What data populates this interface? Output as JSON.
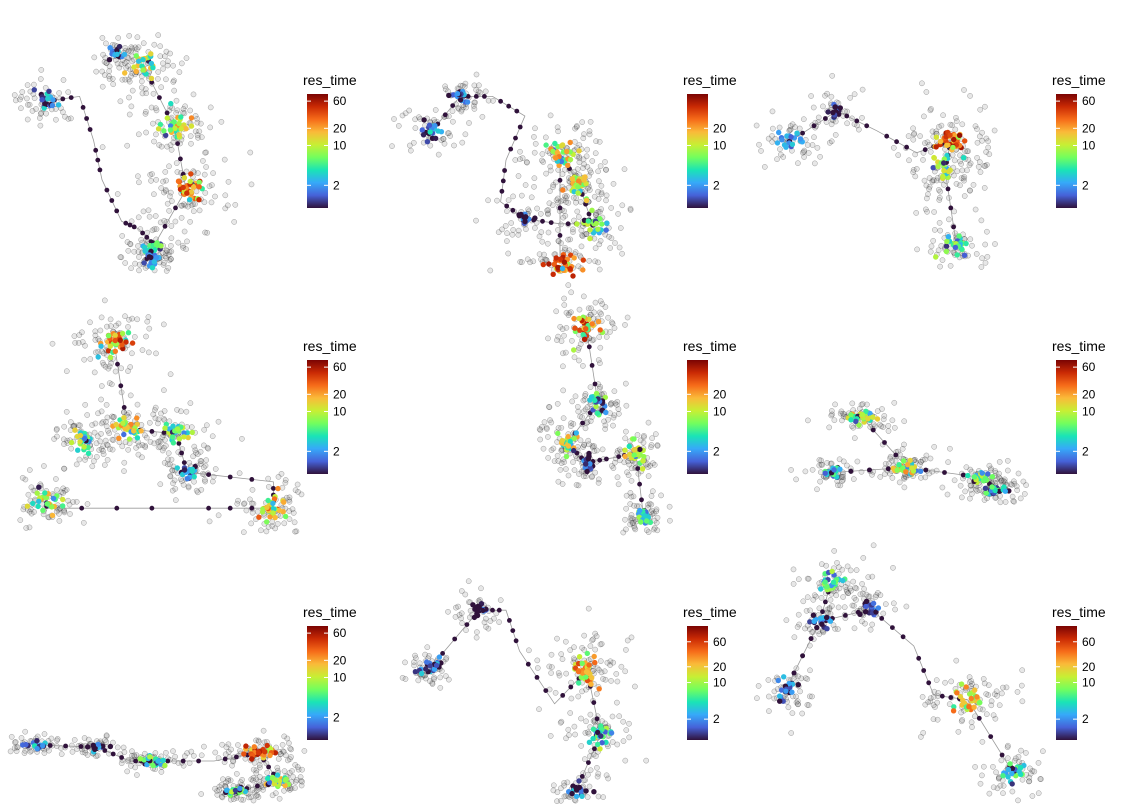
{
  "figure": {
    "legend_title": "res_time",
    "colormap": [
      "#30123b",
      "#4662d8",
      "#36a9f9",
      "#1ae4b6",
      "#72fe5e",
      "#c8ef34",
      "#faba39",
      "#f66b19",
      "#ca2a04",
      "#7a0403"
    ],
    "raw_point_color": "#000000",
    "path_color": "#9a9a9a"
  },
  "chart_data": [
    {
      "type": "scatter",
      "panel": "row1-col1",
      "legend": {
        "title": "res_time",
        "scale": "log",
        "ticks": [
          2,
          10,
          20,
          60
        ],
        "range": [
          0.8,
          80
        ]
      },
      "clusters": [
        [
          0.1,
          0.34,
          4
        ],
        [
          0.45,
          0.2,
          20
        ],
        [
          0.56,
          0.45,
          25
        ],
        [
          0.6,
          0.7,
          60
        ],
        [
          0.49,
          0.93,
          8
        ],
        [
          0.48,
          0.98,
          4
        ],
        [
          0.35,
          0.15,
          3
        ]
      ],
      "path": [
        [
          0.1,
          0.34
        ],
        [
          0.22,
          0.32
        ],
        [
          0.27,
          0.5
        ],
        [
          0.3,
          0.66
        ],
        [
          0.37,
          0.83
        ],
        [
          0.43,
          0.86
        ],
        [
          0.49,
          0.93
        ],
        [
          0.45,
          1.0
        ],
        [
          0.6,
          0.7
        ],
        [
          0.56,
          0.45
        ],
        [
          0.45,
          0.2
        ]
      ]
    },
    {
      "type": "scatter",
      "panel": "row1-col2",
      "legend": {
        "title": "res_time",
        "scale": "log",
        "ticks": [
          2,
          10,
          20
        ],
        "range": [
          0.8,
          80
        ]
      },
      "clusters": [
        [
          0.12,
          0.47,
          4
        ],
        [
          0.23,
          0.32,
          3
        ],
        [
          0.6,
          0.55,
          30
        ],
        [
          0.67,
          0.68,
          25
        ],
        [
          0.72,
          0.84,
          12
        ],
        [
          0.6,
          1.0,
          70
        ],
        [
          0.47,
          0.82,
          2
        ]
      ],
      "path": [
        [
          0.12,
          0.47
        ],
        [
          0.23,
          0.32
        ],
        [
          0.35,
          0.32
        ],
        [
          0.47,
          0.4
        ],
        [
          0.4,
          0.58
        ],
        [
          0.38,
          0.75
        ],
        [
          0.47,
          0.82
        ],
        [
          0.6,
          0.84
        ],
        [
          0.72,
          0.84
        ],
        [
          0.67,
          0.68
        ],
        [
          0.6,
          0.55
        ],
        [
          0.6,
          1.0
        ]
      ]
    },
    {
      "type": "scatter",
      "panel": "row1-col3",
      "legend": {
        "title": "res_time",
        "scale": "log",
        "ticks": [
          2,
          10,
          20,
          60
        ],
        "range": [
          0.8,
          80
        ]
      },
      "clusters": [
        [
          0.12,
          0.5,
          4
        ],
        [
          0.68,
          0.5,
          70
        ],
        [
          0.66,
          0.62,
          15
        ],
        [
          0.7,
          0.93,
          10
        ],
        [
          0.28,
          0.38,
          2
        ]
      ],
      "path": [
        [
          0.12,
          0.5
        ],
        [
          0.28,
          0.38
        ],
        [
          0.42,
          0.46
        ],
        [
          0.56,
          0.55
        ],
        [
          0.68,
          0.5
        ],
        [
          0.66,
          0.62
        ],
        [
          0.7,
          0.93
        ]
      ]
    },
    {
      "type": "scatter",
      "panel": "row2-col1",
      "legend": {
        "title": "res_time",
        "scale": "log",
        "ticks": [
          2,
          10,
          20,
          60
        ],
        "range": [
          0.8,
          80
        ]
      },
      "clusters": [
        [
          0.33,
          0.24,
          60
        ],
        [
          0.38,
          0.6,
          25
        ],
        [
          0.22,
          0.65,
          15
        ],
        [
          0.56,
          0.62,
          15
        ],
        [
          0.92,
          0.93,
          40
        ],
        [
          0.08,
          0.9,
          20
        ],
        [
          0.6,
          0.78,
          4
        ]
      ],
      "path": [
        [
          0.33,
          0.24
        ],
        [
          0.38,
          0.6
        ],
        [
          0.56,
          0.62
        ],
        [
          0.6,
          0.78
        ],
        [
          0.92,
          0.82
        ],
        [
          0.92,
          0.93
        ],
        [
          0.6,
          0.93
        ],
        [
          0.08,
          0.93
        ],
        [
          0.08,
          0.9
        ]
      ]
    },
    {
      "type": "scatter",
      "panel": "row2-col2",
      "legend": {
        "title": "res_time",
        "scale": "log",
        "ticks": [
          2,
          10,
          20
        ],
        "range": [
          0.8,
          80
        ]
      },
      "clusters": [
        [
          0.56,
          0.18,
          60
        ],
        [
          0.62,
          0.49,
          10
        ],
        [
          0.46,
          0.66,
          20
        ],
        [
          0.82,
          0.7,
          20
        ],
        [
          0.86,
          0.96,
          8
        ],
        [
          0.56,
          0.74,
          2
        ]
      ],
      "path": [
        [
          0.56,
          0.18
        ],
        [
          0.62,
          0.49
        ],
        [
          0.46,
          0.66
        ],
        [
          0.56,
          0.74
        ],
        [
          0.7,
          0.72
        ],
        [
          0.82,
          0.7
        ],
        [
          0.86,
          0.96
        ]
      ]
    },
    {
      "type": "scatter",
      "panel": "row3-col3",
      "legend": {
        "title": "res_time",
        "scale": "log",
        "ticks": [
          2,
          10,
          20,
          60
        ],
        "range": [
          0.8,
          80
        ]
      },
      "clusters": [
        [
          0.3,
          0.1,
          20
        ],
        [
          0.48,
          0.5,
          25
        ],
        [
          0.18,
          0.54,
          6
        ],
        [
          0.78,
          0.58,
          12
        ],
        [
          0.84,
          0.68,
          6
        ]
      ],
      "path": [
        [
          0.3,
          0.1
        ],
        [
          0.48,
          0.5
        ],
        [
          0.18,
          0.54
        ],
        [
          0.48,
          0.5
        ],
        [
          0.78,
          0.58
        ],
        [
          0.84,
          0.68
        ]
      ]
    },
    {
      "type": "scatter",
      "panel": "row3-col1",
      "legend": {
        "title": "res_time",
        "scale": "log",
        "ticks": [
          2,
          10,
          20,
          60
        ],
        "range": [
          0.8,
          80
        ]
      },
      "clusters": [
        [
          0.06,
          0.5,
          4
        ],
        [
          0.28,
          0.52,
          3
        ],
        [
          0.48,
          0.66,
          12
        ],
        [
          0.86,
          0.58,
          60
        ],
        [
          0.93,
          0.86,
          20
        ],
        [
          0.78,
          0.96,
          10
        ]
      ],
      "path": [
        [
          0.06,
          0.5
        ],
        [
          0.28,
          0.52
        ],
        [
          0.4,
          0.66
        ],
        [
          0.48,
          0.66
        ],
        [
          0.7,
          0.66
        ],
        [
          0.86,
          0.58
        ],
        [
          0.93,
          0.86
        ],
        [
          0.78,
          0.96
        ]
      ]
    },
    {
      "type": "scatter",
      "panel": "row3-col2",
      "legend": {
        "title": "res_time",
        "scale": "log",
        "ticks": [
          2,
          10,
          20,
          60
        ],
        "range": [
          0.8,
          120
        ]
      },
      "clusters": [
        [
          0.12,
          0.47,
          4
        ],
        [
          0.7,
          0.48,
          60
        ],
        [
          0.75,
          0.75,
          15
        ],
        [
          0.66,
          0.98,
          4
        ],
        [
          0.3,
          0.23,
          2
        ]
      ],
      "path": [
        [
          0.12,
          0.47
        ],
        [
          0.3,
          0.23
        ],
        [
          0.4,
          0.23
        ],
        [
          0.45,
          0.4
        ],
        [
          0.58,
          0.62
        ],
        [
          0.7,
          0.48
        ],
        [
          0.75,
          0.75
        ],
        [
          0.66,
          0.98
        ]
      ]
    },
    {
      "type": "scatter",
      "panel": "row3-col4",
      "legend": {
        "title": "res_time",
        "scale": "log",
        "ticks": [
          2,
          10,
          20,
          60
        ],
        "range": [
          0.8,
          120
        ]
      },
      "clusters": [
        [
          0.26,
          0.14,
          12
        ],
        [
          0.22,
          0.3,
          3
        ],
        [
          0.1,
          0.58,
          4
        ],
        [
          0.74,
          0.62,
          40
        ],
        [
          0.9,
          0.92,
          8
        ],
        [
          0.4,
          0.25,
          2
        ]
      ],
      "path": [
        [
          0.26,
          0.14
        ],
        [
          0.22,
          0.3
        ],
        [
          0.1,
          0.58
        ],
        [
          0.22,
          0.3
        ],
        [
          0.4,
          0.25
        ],
        [
          0.55,
          0.4
        ],
        [
          0.62,
          0.6
        ],
        [
          0.74,
          0.62
        ],
        [
          0.9,
          0.92
        ]
      ]
    }
  ]
}
